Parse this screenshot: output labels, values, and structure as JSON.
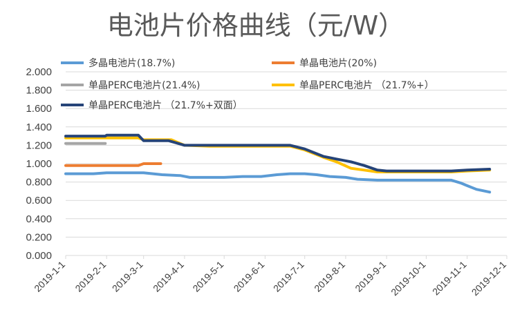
{
  "chart_data": {
    "type": "line",
    "title": "电池片价格曲线（元/W）",
    "xlabel": "",
    "ylabel": "",
    "ylim": [
      0,
      2.0
    ],
    "y_ticks": [
      "0.000",
      "0.200",
      "0.400",
      "0.600",
      "0.800",
      "1.000",
      "1.200",
      "1.400",
      "1.600",
      "1.800",
      "2.000"
    ],
    "x_ticks": [
      "2019-1-1",
      "2019-2-1",
      "2019-3-1",
      "2019-4-1",
      "2019-5-1",
      "2019-6-1",
      "2019-7-1",
      "2019-8-1",
      "2019-9-1",
      "2019-10-1",
      "2019-11-1",
      "2019-12-1"
    ],
    "grid": true,
    "legend_position": "top",
    "series": [
      {
        "name": "多晶电池片(18.7%)",
        "color": "#5b9bd5",
        "points": [
          [
            "2019-1-1",
            0.89
          ],
          [
            "2019-1-15",
            0.89
          ],
          [
            "2019-1-22",
            0.89
          ],
          [
            "2019-2-1",
            0.9
          ],
          [
            "2019-2-15",
            0.9
          ],
          [
            "2019-3-1",
            0.9
          ],
          [
            "2019-3-15",
            0.88
          ],
          [
            "2019-3-29",
            0.87
          ],
          [
            "2019-4-5",
            0.85
          ],
          [
            "2019-4-20",
            0.85
          ],
          [
            "2019-5-1",
            0.85
          ],
          [
            "2019-5-15",
            0.86
          ],
          [
            "2019-5-29",
            0.86
          ],
          [
            "2019-6-10",
            0.88
          ],
          [
            "2019-6-20",
            0.89
          ],
          [
            "2019-7-1",
            0.89
          ],
          [
            "2019-7-10",
            0.88
          ],
          [
            "2019-7-20",
            0.86
          ],
          [
            "2019-8-1",
            0.85
          ],
          [
            "2019-8-10",
            0.83
          ],
          [
            "2019-8-25",
            0.82
          ],
          [
            "2019-9-1",
            0.82
          ],
          [
            "2019-9-20",
            0.82
          ],
          [
            "2019-10-1",
            0.82
          ],
          [
            "2019-10-20",
            0.82
          ],
          [
            "2019-10-27",
            0.79
          ],
          [
            "2019-11-1",
            0.76
          ],
          [
            "2019-11-8",
            0.72
          ],
          [
            "2019-11-18",
            0.69
          ]
        ]
      },
      {
        "name": "单晶电池片(20%)",
        "color": "#ed7d31",
        "points": [
          [
            "2019-1-1",
            0.98
          ],
          [
            "2019-2-15",
            0.98
          ],
          [
            "2019-2-25",
            0.98
          ],
          [
            "2019-3-1",
            1.0
          ],
          [
            "2019-3-14",
            1.0
          ]
        ]
      },
      {
        "name": "单晶PERC电池片(21.4%)",
        "color": "#a5a5a5",
        "points": [
          [
            "2019-1-1",
            1.22
          ],
          [
            "2019-1-31",
            1.22
          ]
        ]
      },
      {
        "name": "单晶PERC电池片 （21.7%+）",
        "color": "#ffc000",
        "points": [
          [
            "2019-1-1",
            1.28
          ],
          [
            "2019-1-31",
            1.28
          ],
          [
            "2019-2-25",
            1.28
          ],
          [
            "2019-3-1",
            1.26
          ],
          [
            "2019-3-22",
            1.26
          ],
          [
            "2019-4-1",
            1.2
          ],
          [
            "2019-4-20",
            1.19
          ],
          [
            "2019-5-1",
            1.19
          ],
          [
            "2019-6-1",
            1.19
          ],
          [
            "2019-6-20",
            1.19
          ],
          [
            "2019-7-1",
            1.15
          ],
          [
            "2019-7-15",
            1.07
          ],
          [
            "2019-7-25",
            1.02
          ],
          [
            "2019-8-5",
            0.95
          ],
          [
            "2019-8-15",
            0.93
          ],
          [
            "2019-8-25",
            0.91
          ],
          [
            "2019-9-1",
            0.91
          ],
          [
            "2019-10-1",
            0.91
          ],
          [
            "2019-10-20",
            0.91
          ],
          [
            "2019-11-1",
            0.92
          ],
          [
            "2019-11-18",
            0.93
          ]
        ]
      },
      {
        "name": "单晶PERC电池片 （21.7%+双面）",
        "color": "#264478",
        "points": [
          [
            "2019-1-1",
            1.3
          ],
          [
            "2019-1-31",
            1.3
          ],
          [
            "2019-2-1",
            1.31
          ],
          [
            "2019-2-25",
            1.31
          ],
          [
            "2019-3-1",
            1.25
          ],
          [
            "2019-3-20",
            1.25
          ],
          [
            "2019-4-1",
            1.2
          ],
          [
            "2019-4-20",
            1.2
          ],
          [
            "2019-5-1",
            1.2
          ],
          [
            "2019-6-1",
            1.2
          ],
          [
            "2019-6-20",
            1.2
          ],
          [
            "2019-7-1",
            1.16
          ],
          [
            "2019-7-15",
            1.08
          ],
          [
            "2019-7-25",
            1.05
          ],
          [
            "2019-8-5",
            1.02
          ],
          [
            "2019-8-15",
            0.98
          ],
          [
            "2019-8-25",
            0.93
          ],
          [
            "2019-9-1",
            0.92
          ],
          [
            "2019-9-15",
            0.92
          ],
          [
            "2019-10-1",
            0.92
          ],
          [
            "2019-10-20",
            0.92
          ],
          [
            "2019-11-1",
            0.93
          ],
          [
            "2019-11-18",
            0.94
          ]
        ]
      }
    ]
  }
}
